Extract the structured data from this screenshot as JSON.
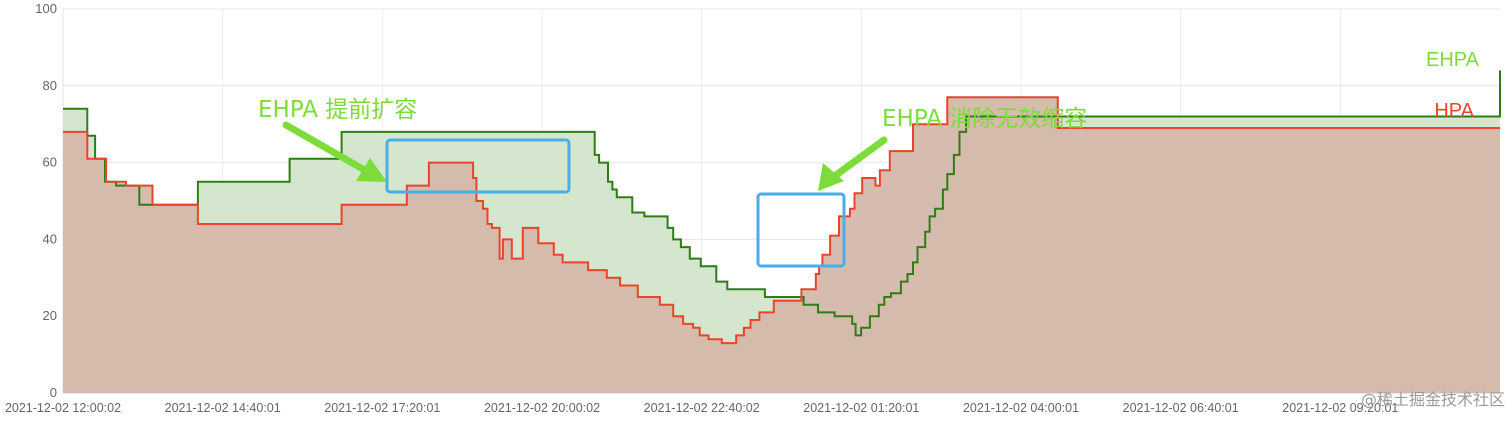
{
  "chart_data": {
    "type": "area",
    "ylim": [
      0,
      100
    ],
    "yticks": [
      0,
      20,
      40,
      60,
      80,
      100
    ],
    "xticks": [
      "2021-12-02 12:00:02",
      "2021-12-02 14:40:01",
      "2021-12-02 17:20:01",
      "2021-12-02 20:00:02",
      "2021-12-02 22:40:02",
      "2021-12-02 01:20:01",
      "2021-12-02 04:00:01",
      "2021-12-02 06:40:01",
      "2021-12-02 09:20:01"
    ],
    "xrange_minutes": [
      0,
      1300
    ],
    "grid": true,
    "step": true,
    "series": [
      {
        "name": "EHPA",
        "color": "#2f7d16",
        "fill": "#d4e6cd",
        "x_minutes": [
          0,
          22,
          29,
          38,
          48,
          57,
          69,
          122,
          205,
          252,
          327,
          379,
          481,
          485,
          493,
          497,
          501,
          515,
          526,
          530,
          541,
          547,
          552,
          559,
          567,
          577,
          591,
          601,
          635,
          670,
          683,
          698,
          714,
          717,
          722,
          730,
          738,
          743,
          749,
          758,
          764,
          769,
          773,
          780,
          784,
          789,
          796,
          800,
          806,
          811,
          817,
          1300
        ],
        "y": [
          74,
          67,
          61,
          55,
          54,
          54,
          49,
          55,
          61,
          68,
          68,
          68,
          62,
          60,
          55,
          53,
          51,
          47,
          46,
          46,
          46,
          43,
          40,
          38,
          35,
          33,
          29,
          27,
          25,
          23,
          21,
          20,
          18,
          15,
          17,
          20,
          23,
          25,
          26,
          29,
          31,
          34,
          38,
          42,
          46,
          48,
          53,
          57,
          62,
          68,
          72,
          84
        ]
      },
      {
        "name": "HPA",
        "color": "#e8452c",
        "fill": "#d4b8aa",
        "x_minutes": [
          0,
          22,
          39,
          57,
          81,
          122,
          186,
          252,
          311,
          331,
          348,
          358,
          371,
          374,
          380,
          384,
          388,
          395,
          398,
          406,
          416,
          430,
          444,
          452,
          475,
          492,
          504,
          520,
          540,
          552,
          561,
          570,
          576,
          584,
          596,
          609,
          616,
          622,
          630,
          643,
          668,
          681,
          684,
          687,
          694,
          702,
          712,
          716,
          723,
          735,
          739,
          748,
          769,
          800,
          822,
          846,
          856,
          900,
          978,
          990,
          1180
        ],
        "y": [
          68,
          61,
          55,
          54,
          49,
          44,
          44,
          49,
          54,
          60,
          60,
          60,
          56,
          50,
          48,
          44,
          43,
          35,
          40,
          35,
          43,
          39,
          36,
          34,
          32,
          30,
          28,
          25,
          23,
          20,
          18,
          17,
          15,
          14,
          13,
          15,
          17,
          19,
          21,
          24,
          27,
          31,
          33,
          36,
          41,
          46,
          48,
          52,
          56,
          54,
          58,
          63,
          70,
          77,
          77,
          77,
          77,
          69,
          69,
          69,
          69
        ]
      }
    ]
  },
  "series_labels": {
    "ehpa": "EHPA",
    "hpa": "HPA"
  },
  "annotations": {
    "left": "EHPA 提前扩容",
    "right": "EHPA 消除无效缩容"
  },
  "annotation_color": "#7ddc3a",
  "highlight_color": "#4aaee8",
  "watermark": "@稀土掘金技术社区"
}
